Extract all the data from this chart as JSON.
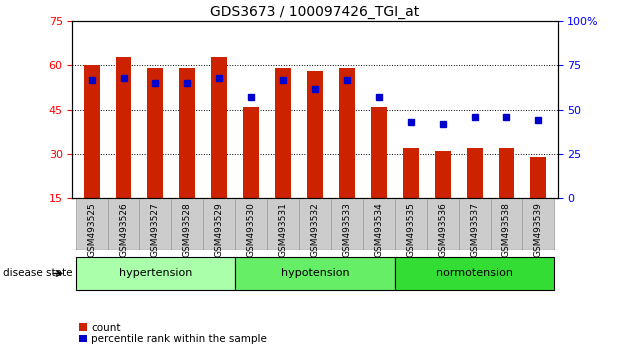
{
  "title": "GDS3673 / 100097426_TGI_at",
  "samples": [
    "GSM493525",
    "GSM493526",
    "GSM493527",
    "GSM493528",
    "GSM493529",
    "GSM493530",
    "GSM493531",
    "GSM493532",
    "GSM493533",
    "GSM493534",
    "GSM493535",
    "GSM493536",
    "GSM493537",
    "GSM493538",
    "GSM493539"
  ],
  "counts": [
    60,
    63,
    59,
    59,
    63,
    46,
    59,
    58,
    59,
    46,
    32,
    31,
    32,
    32,
    29
  ],
  "percentiles": [
    67,
    68,
    65,
    65,
    68,
    57,
    67,
    62,
    67,
    57,
    43,
    42,
    46,
    46,
    44
  ],
  "bar_color": "#cc2200",
  "dot_color": "#0000cc",
  "bar_width": 0.5,
  "ylim_left": [
    15,
    75
  ],
  "ylim_right": [
    0,
    100
  ],
  "yticks_left": [
    15,
    30,
    45,
    60,
    75
  ],
  "yticks_right": [
    0,
    25,
    50,
    75,
    100
  ],
  "group_colors": [
    "#aaffaa",
    "#66ee66",
    "#33dd33"
  ],
  "group_labels": [
    "hypertension",
    "hypotension",
    "normotension"
  ],
  "group_starts": [
    0,
    5,
    10
  ],
  "group_ends": [
    5,
    10,
    15
  ],
  "disease_state_label": "disease state",
  "legend_count_label": "count",
  "legend_percentile_label": "percentile rank within the sample",
  "tick_bg_color": "#cccccc",
  "tick_border_color": "#999999"
}
